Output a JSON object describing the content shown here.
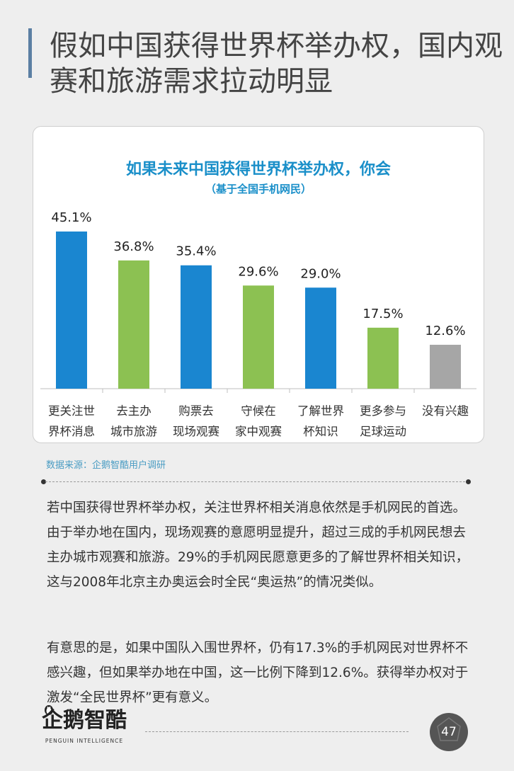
{
  "page": {
    "title": "假如中国获得世界杯举办权，国内观赛和旅游需求拉动明显",
    "source": "数据来源：企鹅智酷用户调研",
    "paragraphs": [
      "若中国获得世界杯举办权，关注世界杯相关消息依然是手机网民的首选。由于举办地在国内，现场观赛的意愿明显提升，超过三成的手机网民想去主办城市观赛和旅游。29%的手机网民愿意更多的了解世界杯相关知识，这与2008年北京主办奥运会时全民“奥运热”的情况类似。",
      "有意思的是，如果中国队入围世界杯，仍有17.3%的手机网民对世界杯不感兴趣，但如果举办地在中国，这一比例下降到12.6%。获得举办权对于激发“全民世界杯”更有意义。"
    ],
    "logo": {
      "name": "企鹅智酷",
      "subtitle": "PENGUIN INTELLIGENCE"
    },
    "page_number": "47"
  },
  "colors": {
    "blue": "#1a86d0",
    "green": "#8cc152",
    "gray": "#a6a6a6",
    "title_accent": "#1a8fc9",
    "badge": "#555555"
  },
  "chart_data": {
    "type": "bar",
    "title": "如果未来中国获得世界杯举办权，你会",
    "subtitle": "（基于全国手机网民）",
    "categories": [
      [
        "更关注世",
        "界杯消息"
      ],
      [
        "去主办",
        "城市旅游"
      ],
      [
        "购票去",
        "现场观赛"
      ],
      [
        "守候在",
        "家中观赛"
      ],
      [
        "了解世界",
        "杯知识"
      ],
      [
        "更多参与",
        "足球运动"
      ],
      [
        "没有兴趣"
      ]
    ],
    "values": [
      45.1,
      36.8,
      35.4,
      29.6,
      29.0,
      17.5,
      12.6
    ],
    "value_labels": [
      "45.1%",
      "36.8%",
      "35.4%",
      "29.6%",
      "29.0%",
      "17.5%",
      "12.6%"
    ],
    "bar_colors": [
      "blue",
      "green",
      "blue",
      "green",
      "blue",
      "green",
      "gray"
    ],
    "ylim": [
      0,
      50
    ],
    "grid": false,
    "legend": "none"
  }
}
